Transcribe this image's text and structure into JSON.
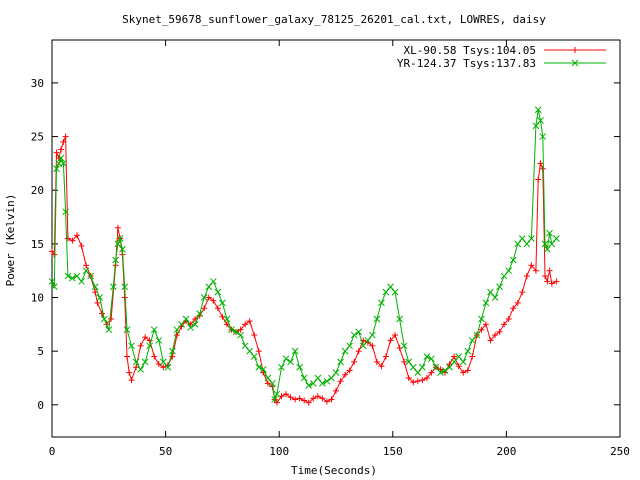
{
  "chart_data": {
    "type": "line",
    "title": "Skynet_59678_sunflower_galaxy_78125_26201_cal.txt, LOWRES, daisy",
    "xlabel": "Time(Seconds)",
    "ylabel": "Power (Kelvin)",
    "xlim": [
      0,
      250
    ],
    "ylim": [
      -3,
      34
    ],
    "xticks": [
      0,
      50,
      100,
      150,
      200,
      250
    ],
    "yticks": [
      0,
      5,
      10,
      15,
      20,
      25,
      30
    ],
    "legend_position": "top-right",
    "grid": false,
    "series": [
      {
        "name": "XL-90.58 Tsys:104.05",
        "color": "#ff0000",
        "marker": "plus",
        "points": [
          [
            0,
            14.3
          ],
          [
            1,
            14.0
          ],
          [
            2,
            23.5
          ],
          [
            3,
            23.0
          ],
          [
            4,
            23.8
          ],
          [
            5,
            24.5
          ],
          [
            6,
            25.0
          ],
          [
            7,
            15.5
          ],
          [
            9,
            15.3
          ],
          [
            11,
            15.8
          ],
          [
            13,
            14.8
          ],
          [
            15,
            13.0
          ],
          [
            17,
            12.0
          ],
          [
            19,
            10.5
          ],
          [
            20,
            9.5
          ],
          [
            22,
            8.5
          ],
          [
            24,
            7.5
          ],
          [
            26,
            8.0
          ],
          [
            28,
            13.0
          ],
          [
            29,
            16.5
          ],
          [
            30,
            15.5
          ],
          [
            31,
            14.0
          ],
          [
            32,
            10.0
          ],
          [
            33,
            4.5
          ],
          [
            34,
            3.0
          ],
          [
            35,
            2.3
          ],
          [
            37,
            3.5
          ],
          [
            39,
            5.5
          ],
          [
            41,
            6.3
          ],
          [
            43,
            6.0
          ],
          [
            45,
            4.5
          ],
          [
            47,
            3.8
          ],
          [
            49,
            3.5
          ],
          [
            51,
            3.7
          ],
          [
            53,
            4.5
          ],
          [
            55,
            6.5
          ],
          [
            57,
            7.3
          ],
          [
            59,
            7.8
          ],
          [
            61,
            7.5
          ],
          [
            63,
            8.0
          ],
          [
            65,
            8.3
          ],
          [
            67,
            9.0
          ],
          [
            69,
            10.0
          ],
          [
            71,
            9.7
          ],
          [
            73,
            9.0
          ],
          [
            75,
            8.2
          ],
          [
            77,
            7.5
          ],
          [
            79,
            7.0
          ],
          [
            81,
            6.8
          ],
          [
            83,
            7.0
          ],
          [
            85,
            7.5
          ],
          [
            87,
            7.8
          ],
          [
            89,
            6.5
          ],
          [
            91,
            5.0
          ],
          [
            93,
            3.0
          ],
          [
            95,
            2.0
          ],
          [
            97,
            1.7
          ],
          [
            98,
            0.5
          ],
          [
            99,
            0.2
          ],
          [
            101,
            0.8
          ],
          [
            103,
            1.0
          ],
          [
            105,
            0.7
          ],
          [
            107,
            0.5
          ],
          [
            109,
            0.6
          ],
          [
            111,
            0.4
          ],
          [
            113,
            0.2
          ],
          [
            115,
            0.6
          ],
          [
            117,
            0.8
          ],
          [
            119,
            0.6
          ],
          [
            121,
            0.3
          ],
          [
            123,
            0.5
          ],
          [
            125,
            1.3
          ],
          [
            127,
            2.2
          ],
          [
            129,
            2.8
          ],
          [
            131,
            3.2
          ],
          [
            133,
            4.0
          ],
          [
            135,
            5.0
          ],
          [
            137,
            6.0
          ],
          [
            139,
            5.8
          ],
          [
            141,
            5.5
          ],
          [
            143,
            4.0
          ],
          [
            145,
            3.6
          ],
          [
            147,
            4.5
          ],
          [
            149,
            6.0
          ],
          [
            151,
            6.5
          ],
          [
            153,
            5.3
          ],
          [
            155,
            4.0
          ],
          [
            157,
            2.5
          ],
          [
            159,
            2.1
          ],
          [
            161,
            2.2
          ],
          [
            163,
            2.3
          ],
          [
            165,
            2.5
          ],
          [
            167,
            3.0
          ],
          [
            169,
            3.5
          ],
          [
            171,
            3.3
          ],
          [
            173,
            3.0
          ],
          [
            175,
            3.8
          ],
          [
            177,
            4.5
          ],
          [
            179,
            3.6
          ],
          [
            181,
            3.0
          ],
          [
            183,
            3.2
          ],
          [
            185,
            4.5
          ],
          [
            187,
            6.5
          ],
          [
            189,
            7.0
          ],
          [
            191,
            7.5
          ],
          [
            193,
            6.0
          ],
          [
            195,
            6.5
          ],
          [
            197,
            6.8
          ],
          [
            199,
            7.5
          ],
          [
            201,
            8.0
          ],
          [
            203,
            9.0
          ],
          [
            205,
            9.5
          ],
          [
            207,
            10.5
          ],
          [
            209,
            12.0
          ],
          [
            211,
            13.0
          ],
          [
            213,
            12.5
          ],
          [
            214,
            21.0
          ],
          [
            215,
            22.5
          ],
          [
            216,
            22.0
          ],
          [
            217,
            12.0
          ],
          [
            218,
            11.5
          ],
          [
            219,
            12.5
          ],
          [
            220,
            11.3
          ],
          [
            222,
            11.5
          ]
        ]
      },
      {
        "name": "YR-124.37 Tsys:137.83",
        "color": "#00b000",
        "marker": "cross",
        "points": [
          [
            0,
            11.5
          ],
          [
            1,
            11.0
          ],
          [
            2,
            22.0
          ],
          [
            3,
            22.5
          ],
          [
            4,
            23.0
          ],
          [
            5,
            22.5
          ],
          [
            6,
            18.0
          ],
          [
            7,
            12.0
          ],
          [
            9,
            11.8
          ],
          [
            11,
            12.0
          ],
          [
            13,
            11.5
          ],
          [
            15,
            12.5
          ],
          [
            17,
            12.0
          ],
          [
            19,
            11.0
          ],
          [
            21,
            10.0
          ],
          [
            23,
            8.0
          ],
          [
            25,
            7.0
          ],
          [
            27,
            11.0
          ],
          [
            28,
            13.5
          ],
          [
            29,
            15.0
          ],
          [
            30,
            15.5
          ],
          [
            31,
            14.5
          ],
          [
            32,
            11.0
          ],
          [
            33,
            7.0
          ],
          [
            35,
            5.5
          ],
          [
            37,
            4.0
          ],
          [
            39,
            3.3
          ],
          [
            41,
            4.0
          ],
          [
            43,
            5.5
          ],
          [
            45,
            7.0
          ],
          [
            47,
            6.0
          ],
          [
            49,
            4.0
          ],
          [
            51,
            3.5
          ],
          [
            53,
            5.0
          ],
          [
            55,
            7.0
          ],
          [
            57,
            7.5
          ],
          [
            59,
            8.0
          ],
          [
            61,
            7.2
          ],
          [
            63,
            7.5
          ],
          [
            65,
            8.5
          ],
          [
            67,
            10.0
          ],
          [
            69,
            11.0
          ],
          [
            71,
            11.5
          ],
          [
            73,
            10.5
          ],
          [
            75,
            9.5
          ],
          [
            77,
            8.0
          ],
          [
            79,
            7.0
          ],
          [
            81,
            6.8
          ],
          [
            83,
            6.5
          ],
          [
            85,
            5.5
          ],
          [
            87,
            5.0
          ],
          [
            89,
            4.5
          ],
          [
            91,
            3.5
          ],
          [
            93,
            3.3
          ],
          [
            95,
            2.5
          ],
          [
            97,
            2.0
          ],
          [
            98,
            0.5
          ],
          [
            99,
            1.0
          ],
          [
            101,
            3.5
          ],
          [
            103,
            4.3
          ],
          [
            105,
            4.0
          ],
          [
            107,
            5.0
          ],
          [
            109,
            3.5
          ],
          [
            111,
            2.5
          ],
          [
            113,
            1.8
          ],
          [
            115,
            2.0
          ],
          [
            117,
            2.5
          ],
          [
            119,
            2.0
          ],
          [
            121,
            2.2
          ],
          [
            123,
            2.5
          ],
          [
            125,
            3.0
          ],
          [
            127,
            4.0
          ],
          [
            129,
            5.0
          ],
          [
            131,
            5.5
          ],
          [
            133,
            6.5
          ],
          [
            135,
            6.8
          ],
          [
            137,
            5.5
          ],
          [
            139,
            6.0
          ],
          [
            141,
            6.5
          ],
          [
            143,
            8.0
          ],
          [
            145,
            9.5
          ],
          [
            147,
            10.5
          ],
          [
            149,
            11.0
          ],
          [
            151,
            10.5
          ],
          [
            153,
            8.0
          ],
          [
            155,
            5.5
          ],
          [
            157,
            4.0
          ],
          [
            159,
            3.5
          ],
          [
            161,
            3.0
          ],
          [
            163,
            3.5
          ],
          [
            165,
            4.5
          ],
          [
            167,
            4.3
          ],
          [
            169,
            3.5
          ],
          [
            171,
            3.0
          ],
          [
            173,
            3.2
          ],
          [
            175,
            3.5
          ],
          [
            177,
            4.0
          ],
          [
            179,
            4.5
          ],
          [
            181,
            4.0
          ],
          [
            183,
            5.0
          ],
          [
            185,
            6.0
          ],
          [
            187,
            6.5
          ],
          [
            189,
            8.0
          ],
          [
            191,
            9.5
          ],
          [
            193,
            10.5
          ],
          [
            195,
            10.0
          ],
          [
            197,
            11.0
          ],
          [
            199,
            12.0
          ],
          [
            201,
            12.5
          ],
          [
            203,
            13.5
          ],
          [
            205,
            15.0
          ],
          [
            207,
            15.5
          ],
          [
            209,
            15.0
          ],
          [
            211,
            15.5
          ],
          [
            213,
            26.0
          ],
          [
            214,
            27.5
          ],
          [
            215,
            26.5
          ],
          [
            216,
            25.0
          ],
          [
            217,
            15.0
          ],
          [
            218,
            14.5
          ],
          [
            219,
            16.0
          ],
          [
            220,
            15.0
          ],
          [
            222,
            15.5
          ]
        ]
      }
    ]
  }
}
